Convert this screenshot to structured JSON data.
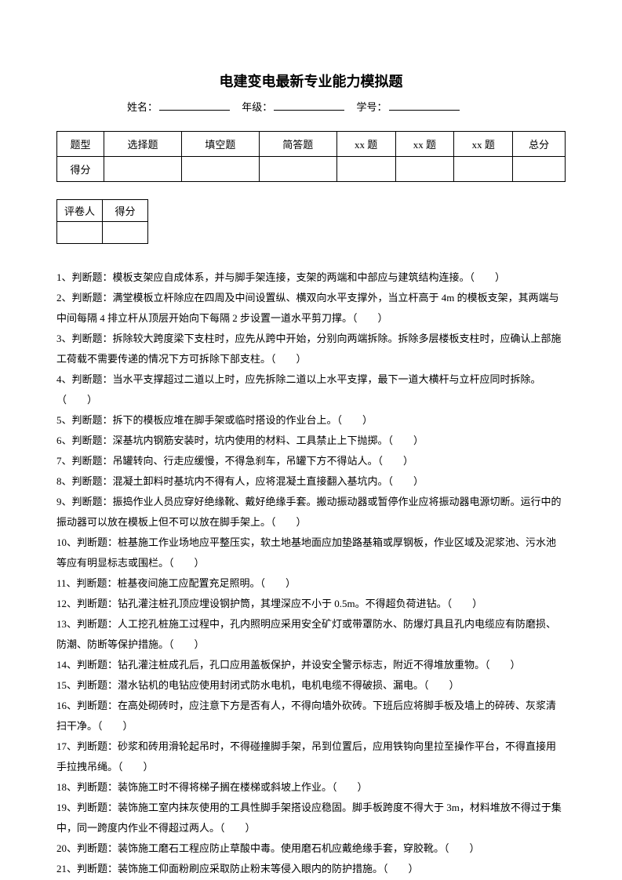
{
  "title": "电建变电最新专业能力模拟题",
  "info": {
    "name_label": "姓名：",
    "grade_label": "年级：",
    "id_label": "学号："
  },
  "main_table": {
    "row1": [
      "题型",
      "选择题",
      "填空题",
      "简答题",
      "xx 题",
      "xx 题",
      "xx 题",
      "总分"
    ],
    "row2_header": "得分"
  },
  "small_table": {
    "c1": "评卷人",
    "c2": "得分"
  },
  "questions": [
    "1、判断题：模板支架应自成体系，并与脚手架连接，支架的两端和中部应与建筑结构连接。（　　）",
    "2、判断题：满堂模板立杆除应在四周及中间设置纵、横双向水平支撑外，当立杆高于 4m 的模板支架，其两端与中间每隔 4 排立杆从顶层开始向下每隔 2 步设置一道水平剪刀撑。（　　）",
    "3、判断题：拆除较大跨度梁下支柱时，应先从跨中开始，分别向两端拆除。拆除多层楼板支柱时，应确认上部施工荷载不需要传递的情况下方可拆除下部支柱。（　　）",
    "4、判断题：当水平支撑超过二道以上时，应先拆除二道以上水平支撑，最下一道大横杆与立杆应同时拆除。（　　）",
    "5、判断题：拆下的模板应堆在脚手架或临时搭设的作业台上。（　　）",
    "6、判断题：深基坑内钢筋安装时，坑内使用的材料、工具禁止上下抛掷。（　　）",
    "7、判断题：吊罐转向、行走应缓慢，不得急刹车，吊罐下方不得站人。（　　）",
    "8、判断题：混凝土卸料时基坑内不得有人，应将混凝土直接翻入基坑内。（　　）",
    "9、判断题：振捣作业人员应穿好绝缘靴、戴好绝缘手套。搬动振动器或暂停作业应将振动器电源切断。运行中的振动器可以放在模板上但不可以放在脚手架上。（　　）",
    "10、判断题：桩基施工作业场地应平整压实，软土地基地面应加垫路基箱或厚钢板，作业区域及泥浆池、污水池等应有明显标志或围栏。（　　）",
    "11、判断题：桩基夜间施工应配置充足照明。（　　）",
    "12、判断题：钻孔灌注桩孔顶应埋设钢护筒，其埋深应不小于 0.5m。不得超负荷进钻。（　　）",
    "13、判断题：人工挖孔桩施工过程中，孔内照明应采用安全矿灯或带罩防水、防爆灯具且孔内电缆应有防磨损、防潮、防断等保护措施。（　　）",
    "14、判断题：钻孔灌注桩成孔后，孔口应用盖板保护，并设安全警示标志，附近不得堆放重物。（　　）",
    "15、判断题：潜水钻机的电钻应使用封闭式防水电机，电机电缆不得破损、漏电。（　　）",
    "16、判断题：在高处砌砖时，应注意下方是否有人，不得向墙外砍砖。下班后应将脚手板及墙上的碎砖、灰浆清扫干净。（　　）",
    "17、判断题：砂浆和砖用滑轮起吊时，不得碰撞脚手架，吊到位置后，应用铁钩向里拉至操作平台，不得直接用手拉拽吊绳。（　　）",
    "18、判断题：装饰施工时不得将梯子搁在楼梯或斜坡上作业。（　　）",
    "19、判断题：装饰施工室内抹灰使用的工具性脚手架搭设应稳固。脚手板跨度不得大于 3m，材料堆放不得过于集中，同一跨度内作业不得超过两人。（　　）",
    "20、判断题：装饰施工磨石工程应防止草酸中毒。使用磨石机应戴绝缘手套，穿胶靴。（　　）",
    "21、判断题：装饰施工仰面粉刷应采取防止粉末等侵入眼内的防护措施。（　　）"
  ]
}
